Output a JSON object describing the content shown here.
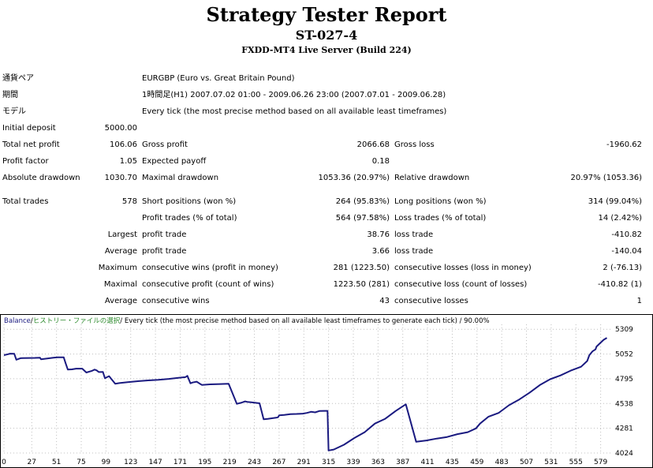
{
  "report": {
    "title": "Strategy Tester Report",
    "subtitle": "ST-027-4",
    "server": "FXDD-MT4 Live Server (Build 224)"
  },
  "info": {
    "symbol_label": "通貨ペア",
    "symbol_value": "EURGBP (Euro vs. Great Britain Pound)",
    "period_label": "期間",
    "period_value": "1時間足(H1) 2007.07.02 01:00 - 2009.06.26 23:00 (2007.07.01 - 2009.06.28)",
    "model_label": "モデル",
    "model_value": "Every tick (the most precise method based on all available least timeframes)"
  },
  "stats": {
    "initial_deposit_label": "Initial deposit",
    "initial_deposit": "5000.00",
    "total_net_profit_label": "Total net profit",
    "total_net_profit": "106.06",
    "gross_profit_label": "Gross profit",
    "gross_profit": "2066.68",
    "gross_loss_label": "Gross loss",
    "gross_loss": "-1960.62",
    "profit_factor_label": "Profit factor",
    "profit_factor": "1.05",
    "expected_payoff_label": "Expected payoff",
    "expected_payoff": "0.18",
    "absolute_drawdown_label": "Absolute drawdown",
    "absolute_drawdown": "1030.70",
    "maximal_drawdown_label": "Maximal drawdown",
    "maximal_drawdown": "1053.36 (20.97%)",
    "relative_drawdown_label": "Relative drawdown",
    "relative_drawdown": "20.97% (1053.36)",
    "total_trades_label": "Total trades",
    "total_trades": "578",
    "short_positions_label": "Short positions (won %)",
    "short_positions": "264 (95.83%)",
    "long_positions_label": "Long positions (won %)",
    "long_positions": "314 (99.04%)",
    "profit_trades_label": "Profit trades (% of total)",
    "profit_trades": "564 (97.58%)",
    "loss_trades_label": "Loss trades (% of total)",
    "loss_trades": "14 (2.42%)",
    "largest_label": "Largest",
    "largest_profit_label": "profit trade",
    "largest_profit": "38.76",
    "largest_loss_label": "loss trade",
    "largest_loss": "-410.82",
    "average_label": "Average",
    "average_profit_label": "profit trade",
    "average_profit": "3.66",
    "average_loss_label": "loss trade",
    "average_loss": "-140.04",
    "maximum_label": "Maximum",
    "max_consec_wins_label": "consecutive wins (profit in money)",
    "max_consec_wins": "281 (1223.50)",
    "max_consec_losses_label": "consecutive losses (loss in money)",
    "max_consec_losses": "2 (-76.13)",
    "maximal_label": "Maximal",
    "maximal_consec_profit_label": "consecutive profit (count of wins)",
    "maximal_consec_profit": "1223.50 (281)",
    "maximal_consec_loss_label": "consecutive loss (count of losses)",
    "maximal_consec_loss": "-410.82 (1)",
    "average2_label": "Average",
    "avg_consec_wins_label": "consecutive wins",
    "avg_consec_wins": "43",
    "avg_consec_losses_label": "consecutive losses",
    "avg_consec_losses": "1"
  },
  "chart_data": {
    "type": "line",
    "legend": {
      "series_name": "Balance",
      "sep1": " / ",
      "file": "ヒストリー・ファイルの選択",
      "rest": " / Every tick (the most precise method based on all available least timeframes to generate each tick) / 90.00%"
    },
    "colors": {
      "series": "#1a1a80",
      "legend_blue": "#1a1a80",
      "legend_green": "#2e8b2e",
      "grid": "#bfbfbf"
    },
    "xlim": [
      0,
      590
    ],
    "ylim": [
      4024,
      5360
    ],
    "x_ticks": [
      0,
      27,
      51,
      75,
      99,
      123,
      147,
      171,
      195,
      219,
      243,
      267,
      291,
      315,
      339,
      363,
      387,
      411,
      435,
      459,
      483,
      507,
      531,
      555,
      579
    ],
    "y_ticks": [
      5309,
      5052,
      4795,
      4538,
      4281,
      4024
    ],
    "series": [
      {
        "name": "Balance",
        "x": [
          0,
          4,
          6,
          10,
          12,
          16,
          18,
          30,
          35,
          36,
          48,
          52,
          58,
          60,
          62,
          66,
          70,
          76,
          80,
          85,
          88,
          90,
          92,
          96,
          98,
          100,
          102,
          104,
          108,
          112,
          120,
          130,
          140,
          150,
          160,
          170,
          176,
          178,
          181,
          183,
          187,
          192,
          200,
          210,
          218,
          226,
          230,
          234,
          236,
          240,
          248,
          252,
          256,
          264,
          266,
          267,
          272,
          278,
          284,
          290,
          294,
          298,
          302,
          306,
          311,
          314,
          315,
          320,
          330,
          340,
          350,
          360,
          370,
          380,
          390,
          400,
          410,
          420,
          430,
          440,
          450,
          458,
          462,
          470,
          480,
          490,
          500,
          510,
          520,
          530,
          540,
          550,
          560,
          566,
          568,
          571,
          574,
          575,
          578,
          582,
          585
        ],
        "y": [
          5040,
          5050,
          5056,
          5054,
          4993,
          5008,
          5010,
          5012,
          5014,
          4998,
          5014,
          5017,
          5017,
          4952,
          4890,
          4893,
          4900,
          4900,
          4860,
          4876,
          4890,
          4882,
          4865,
          4866,
          4800,
          4812,
          4822,
          4795,
          4744,
          4750,
          4760,
          4770,
          4778,
          4784,
          4794,
          4806,
          4812,
          4826,
          4748,
          4756,
          4765,
          4731,
          4737,
          4740,
          4743,
          4535,
          4545,
          4560,
          4555,
          4550,
          4540,
          4375,
          4378,
          4390,
          4395,
          4415,
          4420,
          4428,
          4430,
          4433,
          4440,
          4452,
          4446,
          4460,
          4462,
          4462,
          4050,
          4060,
          4110,
          4180,
          4240,
          4330,
          4380,
          4460,
          4530,
          4140,
          4154,
          4174,
          4190,
          4220,
          4240,
          4280,
          4330,
          4400,
          4440,
          4520,
          4580,
          4650,
          4730,
          4790,
          4830,
          4880,
          4920,
          4980,
          5040,
          5080,
          5100,
          5130,
          5160,
          5200,
          5220
        ]
      }
    ]
  }
}
